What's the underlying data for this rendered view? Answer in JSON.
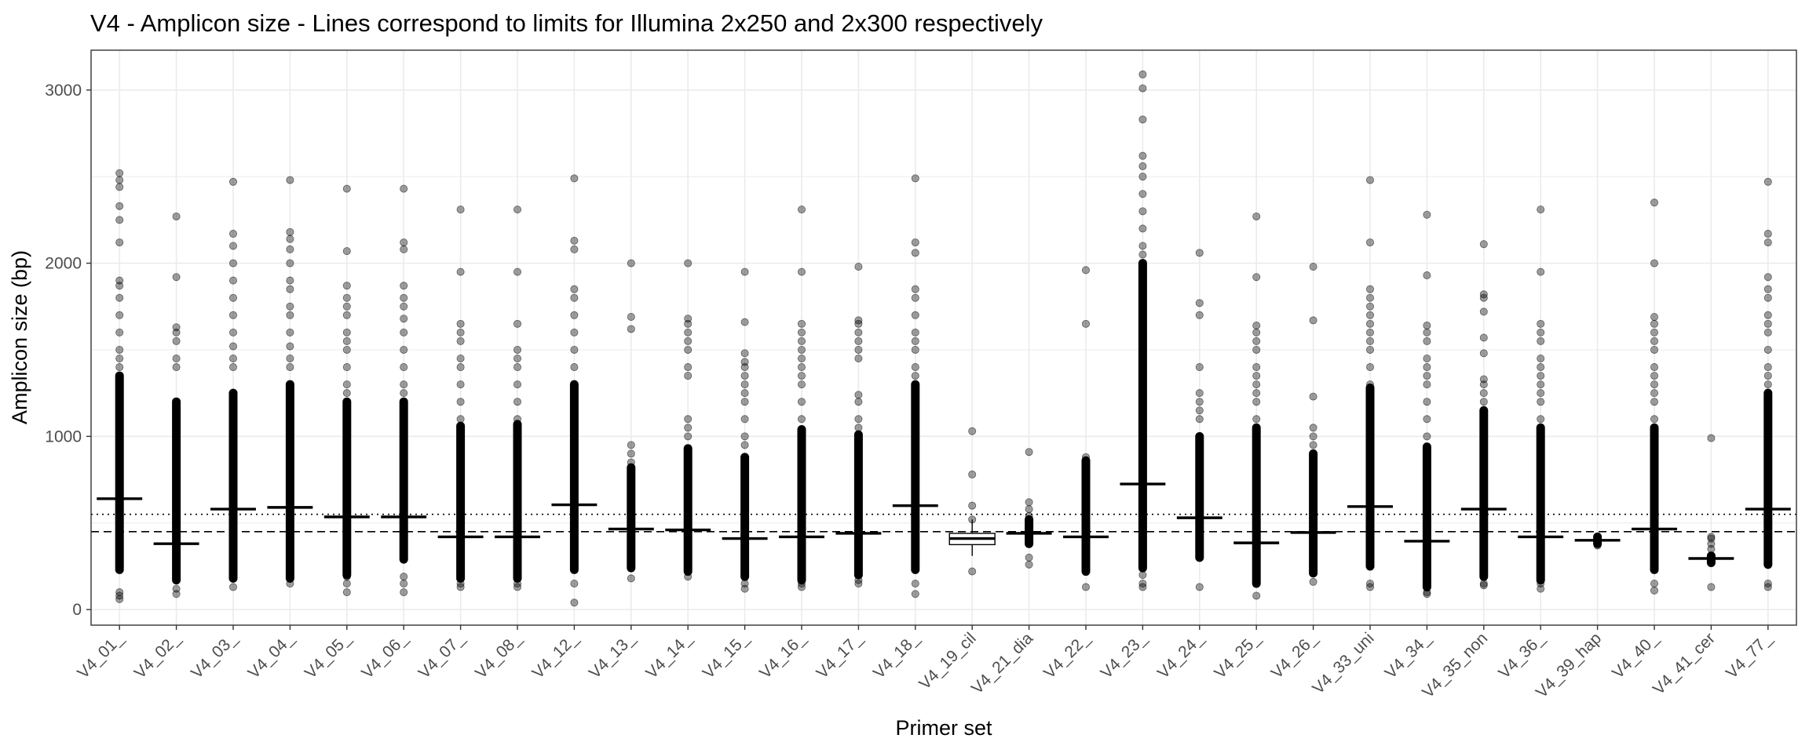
{
  "chart_data": {
    "type": "boxplot",
    "title": "V4 - Amplicon size - Lines correspond to limits for Illumina 2x250 and 2x300 respectively",
    "xlabel": "Primer set",
    "ylabel": "Amplicon size (bp)",
    "ylim": [
      -90,
      3230
    ],
    "y_ticks": [
      0,
      1000,
      2000,
      3000
    ],
    "grid": true,
    "legend": "none",
    "colors": {
      "points": "#000000",
      "box_fill": "#ffffff",
      "grid": "#ebebeb",
      "border": "#333333"
    },
    "reference_lines": [
      {
        "y": 450,
        "style": "dashed"
      },
      {
        "y": 550,
        "style": "dotted"
      }
    ],
    "categories": [
      "V4_01_",
      "V4_02_",
      "V4_03_",
      "V4_04_",
      "V4_05_",
      "V4_06_",
      "V4_07_",
      "V4_08_",
      "V4_12_",
      "V4_13_",
      "V4_14_",
      "V4_15_",
      "V4_16_",
      "V4_17_",
      "V4_18_",
      "V4_19_cil",
      "V4_21_dia",
      "V4_22_",
      "V4_23_",
      "V4_24_",
      "V4_25_",
      "V4_26_",
      "V4_33_uni",
      "V4_34_",
      "V4_35_non",
      "V4_36_",
      "V4_39_hap",
      "V4_40_",
      "V4_41_cer",
      "V4_77_"
    ],
    "medians": [
      640,
      380,
      580,
      590,
      535,
      535,
      420,
      420,
      605,
      465,
      460,
      410,
      420,
      440,
      600,
      410,
      440,
      420,
      725,
      530,
      385,
      445,
      595,
      395,
      580,
      420,
      400,
      465,
      295,
      580
    ],
    "boxes": [
      {
        "category": "V4_19_cil",
        "q1": 375,
        "median": 410,
        "q3": 440,
        "whisker_low": 310,
        "whisker_high": 520
      }
    ],
    "dense_ranges": [
      [
        230,
        1350
      ],
      [
        170,
        1200
      ],
      [
        180,
        1250
      ],
      [
        180,
        1300
      ],
      [
        200,
        1200
      ],
      [
        290,
        1200
      ],
      [
        180,
        1060
      ],
      [
        180,
        1070
      ],
      [
        230,
        1300
      ],
      [
        240,
        820
      ],
      [
        220,
        930
      ],
      [
        190,
        880
      ],
      [
        170,
        1040
      ],
      [
        200,
        1010
      ],
      [
        230,
        1300
      ],
      null,
      [
        380,
        520
      ],
      [
        220,
        860
      ],
      [
        240,
        2000
      ],
      [
        300,
        1000
      ],
      [
        150,
        1050
      ],
      [
        210,
        900
      ],
      [
        250,
        1280
      ],
      [
        130,
        940
      ],
      [
        190,
        1150
      ],
      [
        170,
        1050
      ],
      [
        380,
        420
      ],
      [
        230,
        1050
      ],
      [
        270,
        310
      ],
      [
        260,
        1250
      ]
    ],
    "outliers": [
      [
        60,
        80,
        100,
        2520,
        2480,
        2440,
        2330,
        2250,
        2120,
        1900,
        1870,
        1800,
        1700,
        1600,
        1500,
        1450,
        1400
      ],
      [
        90,
        120,
        1400,
        1450,
        1550,
        1600,
        1630,
        1920,
        2270
      ],
      [
        130,
        1400,
        1450,
        1520,
        1600,
        1700,
        1800,
        1900,
        2000,
        2100,
        2170,
        2470
      ],
      [
        150,
        1400,
        1450,
        1520,
        1600,
        1700,
        1750,
        1850,
        1900,
        2000,
        2080,
        2140,
        2180,
        2480
      ],
      [
        100,
        150,
        190,
        1250,
        1300,
        1400,
        1500,
        1550,
        1600,
        1700,
        1750,
        1800,
        1870,
        2070,
        2430
      ],
      [
        100,
        150,
        190,
        1250,
        1300,
        1400,
        1500,
        1600,
        1680,
        1750,
        1800,
        1870,
        2080,
        2120,
        2430
      ],
      [
        130,
        150,
        1100,
        1200,
        1300,
        1400,
        1450,
        1550,
        1600,
        1650,
        1950,
        2310
      ],
      [
        130,
        150,
        1100,
        1200,
        1300,
        1400,
        1450,
        1500,
        1650,
        1950,
        2310
      ],
      [
        40,
        150,
        1400,
        1500,
        1600,
        1700,
        1800,
        1850,
        2080,
        2130,
        2490
      ],
      [
        180,
        850,
        900,
        950,
        1620,
        1690,
        2000
      ],
      [
        190,
        1000,
        1050,
        1100,
        1350,
        1400,
        1500,
        1550,
        1600,
        1650,
        1680,
        2000
      ],
      [
        120,
        150,
        950,
        1000,
        1100,
        1200,
        1250,
        1300,
        1350,
        1400,
        1430,
        1480,
        1660,
        1950
      ],
      [
        130,
        150,
        1100,
        1200,
        1300,
        1350,
        1400,
        1450,
        1500,
        1550,
        1600,
        1650,
        1950,
        2310
      ],
      [
        150,
        170,
        1050,
        1100,
        1200,
        1240,
        1450,
        1500,
        1550,
        1600,
        1650,
        1670,
        1980
      ],
      [
        90,
        150,
        1350,
        1400,
        1500,
        1550,
        1600,
        1700,
        1800,
        1850,
        2060,
        2120,
        2490
      ],
      [
        220,
        520,
        600,
        780,
        1030
      ],
      [
        260,
        300,
        540,
        580,
        620,
        910
      ],
      [
        130,
        880,
        830,
        1650,
        1960
      ],
      [
        130,
        150,
        200,
        2050,
        2100,
        2200,
        2300,
        2400,
        2500,
        2560,
        2620,
        2830,
        3010,
        3090
      ],
      [
        130,
        1100,
        1150,
        1200,
        1250,
        1400,
        1700,
        1770,
        2060
      ],
      [
        80,
        1100,
        1200,
        1250,
        1300,
        1350,
        1400,
        1500,
        1550,
        1600,
        1640,
        1920,
        2270
      ],
      [
        160,
        950,
        1000,
        1050,
        1230,
        1670,
        1980
      ],
      [
        130,
        150,
        1300,
        1400,
        1500,
        1550,
        1600,
        1650,
        1700,
        1750,
        1800,
        1850,
        2120,
        2480
      ],
      [
        90,
        100,
        1000,
        1100,
        1200,
        1300,
        1350,
        1400,
        1450,
        1550,
        1600,
        1640,
        1930,
        2280
      ],
      [
        140,
        150,
        1200,
        1250,
        1300,
        1330,
        1480,
        1570,
        1720,
        1800,
        1820,
        2110
      ],
      [
        120,
        150,
        1100,
        1200,
        1250,
        1300,
        1350,
        1400,
        1450,
        1550,
        1600,
        1650,
        1950,
        2310
      ],
      [
        370,
        420
      ],
      [
        110,
        150,
        1100,
        1200,
        1250,
        1300,
        1350,
        1400,
        1500,
        1550,
        1600,
        1650,
        1690,
        2000,
        2350
      ],
      [
        130,
        350,
        380,
        410,
        420,
        990
      ],
      [
        130,
        150,
        1300,
        1350,
        1400,
        1500,
        1600,
        1650,
        1700,
        1800,
        1850,
        1920,
        2120,
        2170,
        2470
      ]
    ]
  }
}
